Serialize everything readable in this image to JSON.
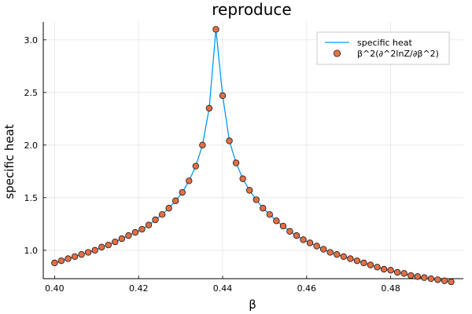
{
  "chart_data": {
    "type": "line",
    "title": "reproduce",
    "xlabel": "β",
    "ylabel": "specific heat",
    "xlim": [
      0.3973,
      0.4973
    ],
    "ylim": [
      0.73,
      3.17
    ],
    "xticks": [
      0.4,
      0.42,
      0.44,
      0.46,
      0.48
    ],
    "xtick_labels": [
      "0.40",
      "0.42",
      "0.44",
      "0.46",
      "0.48"
    ],
    "yticks": [
      1.0,
      1.5,
      2.0,
      2.5,
      3.0
    ],
    "ytick_labels": [
      "1.0",
      "1.5",
      "2.0",
      "2.5",
      "3.0"
    ],
    "grid": true,
    "legend_position": "top-right",
    "x": [
      0.4,
      0.4016,
      0.4032,
      0.4048,
      0.4064,
      0.408,
      0.4096,
      0.4112,
      0.4128,
      0.4144,
      0.416,
      0.4176,
      0.4192,
      0.4208,
      0.4224,
      0.424,
      0.4256,
      0.4272,
      0.4288,
      0.4304,
      0.432,
      0.4336,
      0.4352,
      0.4368,
      0.4384,
      0.44,
      0.4416,
      0.4432,
      0.4448,
      0.4464,
      0.448,
      0.4496,
      0.4512,
      0.4528,
      0.4544,
      0.456,
      0.4576,
      0.4592,
      0.4608,
      0.4624,
      0.464,
      0.4656,
      0.4672,
      0.4688,
      0.4704,
      0.472,
      0.4736,
      0.4752,
      0.4768,
      0.4784,
      0.48,
      0.4816,
      0.4832,
      0.4848,
      0.4864,
      0.488,
      0.4896,
      0.4912,
      0.4928,
      0.4944
    ],
    "series": [
      {
        "name": "specific heat",
        "kind": "line",
        "color": "#009af9",
        "values": [
          0.88,
          0.9,
          0.92,
          0.94,
          0.96,
          0.98,
          1.0,
          1.03,
          1.05,
          1.08,
          1.11,
          1.14,
          1.17,
          1.2,
          1.24,
          1.29,
          1.34,
          1.4,
          1.47,
          1.55,
          1.66,
          1.8,
          2.0,
          2.35,
          3.1,
          2.47,
          2.04,
          1.83,
          1.68,
          1.57,
          1.48,
          1.4,
          1.34,
          1.28,
          1.23,
          1.18,
          1.14,
          1.1,
          1.07,
          1.04,
          1.01,
          0.98,
          0.96,
          0.94,
          0.92,
          0.9,
          0.88,
          0.86,
          0.84,
          0.82,
          0.81,
          0.79,
          0.78,
          0.76,
          0.75,
          0.74,
          0.73,
          0.72,
          0.71,
          0.7
        ]
      },
      {
        "name": "β^2(∂^2lnZ/∂β^2)",
        "kind": "scatter",
        "color": "#e26f46",
        "values": [
          0.88,
          0.9,
          0.92,
          0.94,
          0.96,
          0.98,
          1.0,
          1.03,
          1.05,
          1.08,
          1.11,
          1.14,
          1.17,
          1.2,
          1.24,
          1.29,
          1.34,
          1.4,
          1.47,
          1.55,
          1.66,
          1.8,
          2.0,
          2.35,
          3.1,
          2.47,
          2.04,
          1.83,
          1.68,
          1.57,
          1.48,
          1.4,
          1.34,
          1.28,
          1.23,
          1.18,
          1.14,
          1.1,
          1.07,
          1.04,
          1.01,
          0.98,
          0.96,
          0.94,
          0.92,
          0.9,
          0.88,
          0.86,
          0.84,
          0.82,
          0.81,
          0.79,
          0.78,
          0.76,
          0.75,
          0.74,
          0.73,
          0.72,
          0.71,
          0.7
        ]
      }
    ]
  }
}
